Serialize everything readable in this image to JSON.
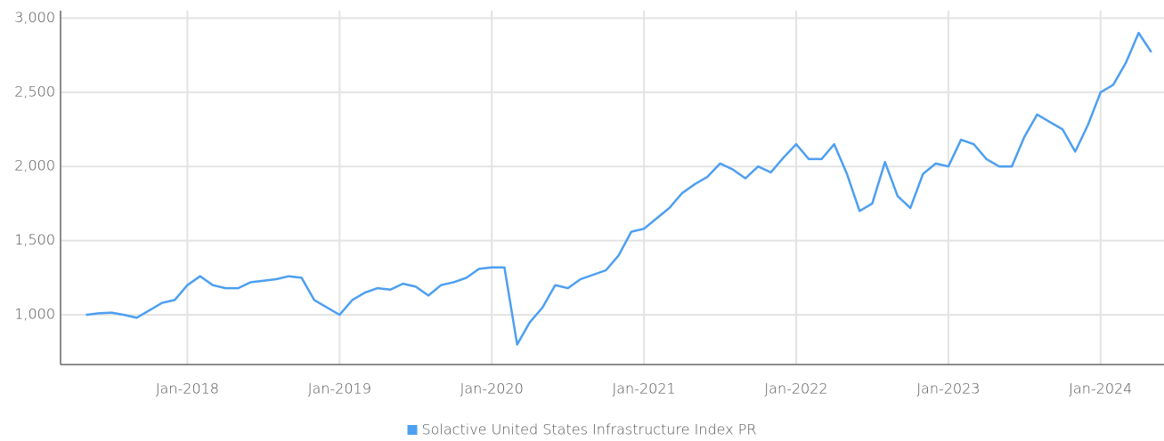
{
  "chart_data": {
    "type": "line",
    "x": [
      "2017-05",
      "2017-06",
      "2017-07",
      "2017-08",
      "2017-09",
      "2017-10",
      "2017-11",
      "2017-12",
      "2018-01",
      "2018-02",
      "2018-03",
      "2018-04",
      "2018-05",
      "2018-06",
      "2018-07",
      "2018-08",
      "2018-09",
      "2018-10",
      "2018-11",
      "2018-12",
      "2019-01",
      "2019-02",
      "2019-03",
      "2019-04",
      "2019-05",
      "2019-06",
      "2019-07",
      "2019-08",
      "2019-09",
      "2019-10",
      "2019-11",
      "2019-12",
      "2020-01",
      "2020-02",
      "2020-03",
      "2020-04",
      "2020-05",
      "2020-06",
      "2020-07",
      "2020-08",
      "2020-09",
      "2020-10",
      "2020-11",
      "2020-12",
      "2021-01",
      "2021-02",
      "2021-03",
      "2021-04",
      "2021-05",
      "2021-06",
      "2021-07",
      "2021-08",
      "2021-09",
      "2021-10",
      "2021-11",
      "2021-12",
      "2022-01",
      "2022-02",
      "2022-03",
      "2022-04",
      "2022-05",
      "2022-06",
      "2022-07",
      "2022-08",
      "2022-09",
      "2022-10",
      "2022-11",
      "2022-12",
      "2023-01",
      "2023-02",
      "2023-03",
      "2023-04",
      "2023-05",
      "2023-06",
      "2023-07",
      "2023-08",
      "2023-09",
      "2023-10",
      "2023-11",
      "2023-12",
      "2024-01",
      "2024-02",
      "2024-03",
      "2024-04",
      "2024-05"
    ],
    "series": [
      {
        "name": "Solactive United States Infrastructure Index PR",
        "color": "#4d9ff0",
        "values": [
          1000,
          1010,
          1015,
          1000,
          980,
          1030,
          1080,
          1100,
          1200,
          1260,
          1200,
          1180,
          1180,
          1220,
          1230,
          1240,
          1260,
          1250,
          1100,
          1050,
          1000,
          1100,
          1150,
          1180,
          1170,
          1210,
          1190,
          1130,
          1200,
          1220,
          1250,
          1310,
          1320,
          1320,
          800,
          950,
          1050,
          1200,
          1180,
          1240,
          1270,
          1300,
          1400,
          1560,
          1580,
          1650,
          1720,
          1820,
          1880,
          1930,
          2020,
          1980,
          1920,
          2000,
          1960,
          2060,
          2150,
          2050,
          2050,
          2150,
          1950,
          1700,
          1750,
          2030,
          1800,
          1720,
          1950,
          2020,
          2000,
          2180,
          2150,
          2050,
          2000,
          2000,
          2200,
          2350,
          2300,
          2250,
          2100,
          2280,
          2500,
          2550,
          2700,
          2900,
          2770
        ]
      }
    ],
    "xlim": [
      "2017-03",
      "2024-06"
    ],
    "xticks": [
      {
        "value": "2018-01",
        "label": "Jan-2018"
      },
      {
        "value": "2019-01",
        "label": "Jan-2019"
      },
      {
        "value": "2020-01",
        "label": "Jan-2020"
      },
      {
        "value": "2021-01",
        "label": "Jan-2021"
      },
      {
        "value": "2022-01",
        "label": "Jan-2022"
      },
      {
        "value": "2023-01",
        "label": "Jan-2023"
      },
      {
        "value": "2024-01",
        "label": "Jan-2024"
      }
    ],
    "ylim": [
      665,
      3050
    ],
    "yticks": [
      {
        "value": 1000,
        "label": "1,000"
      },
      {
        "value": 1500,
        "label": "1,500"
      },
      {
        "value": 2000,
        "label": "2,000"
      },
      {
        "value": 2500,
        "label": "2,500"
      },
      {
        "value": 3000,
        "label": "3,000"
      }
    ],
    "grid": true,
    "legend": "bottom"
  }
}
